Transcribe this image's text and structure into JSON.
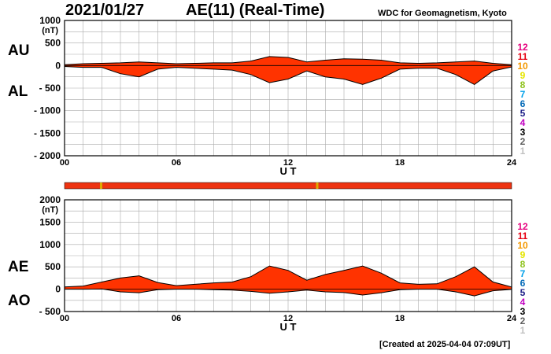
{
  "header": {
    "date": "2021/01/27",
    "title": "AE(11) (Real-Time)",
    "institution": "WDC for Geomagnetism, Kyoto",
    "created": "[Created at 2025-04-04 07:09UT]"
  },
  "stations": {
    "labels": [
      "12",
      "11",
      "10",
      "9",
      "8",
      "7",
      "6",
      "5",
      "4",
      "3",
      "2",
      "1"
    ],
    "colors": [
      "#e6007e",
      "#e60012",
      "#f39800",
      "#e5e500",
      "#8fc31f",
      "#00a0e9",
      "#0068b7",
      "#1d2088",
      "#c000c0",
      "#000000",
      "#606060",
      "#c0c0c0"
    ]
  },
  "colors": {
    "fill": "#ff3300",
    "line": "#000000",
    "grid": "#aaaaaa",
    "bar": "#ee3311",
    "bar_mark": "#ddaa00"
  },
  "chart_data": [
    {
      "type": "area",
      "name": "AU/AL",
      "ylabel": "(nT)",
      "side_labels": [
        "AU",
        "AL"
      ],
      "xlabel": "U T",
      "xlim": [
        0,
        24
      ],
      "ylim": [
        -2000,
        1000
      ],
      "x_ticks": [
        0,
        6,
        12,
        18,
        24
      ],
      "x_tick_labels": [
        "00",
        "06",
        "12",
        "18",
        "24"
      ],
      "y_ticks": [
        1000,
        500,
        0,
        -500,
        -1000,
        -1500,
        -2000
      ],
      "y_tick_labels": [
        "1000",
        "500",
        "0",
        "- 500",
        "- 1000",
        "- 1500",
        "- 2000"
      ],
      "grid": true,
      "x": [
        0,
        1,
        2,
        3,
        4,
        5,
        6,
        7,
        8,
        9,
        10,
        11,
        12,
        13,
        14,
        15,
        16,
        17,
        18,
        19,
        20,
        21,
        22,
        23,
        24
      ],
      "series": [
        {
          "name": "AU",
          "values": [
            20,
            40,
            50,
            60,
            80,
            60,
            40,
            50,
            60,
            60,
            100,
            200,
            180,
            80,
            120,
            150,
            140,
            120,
            60,
            50,
            60,
            80,
            100,
            50,
            20
          ]
        },
        {
          "name": "AL",
          "values": [
            -20,
            -40,
            -40,
            -180,
            -250,
            -80,
            -40,
            -60,
            -80,
            -100,
            -200,
            -380,
            -300,
            -120,
            -250,
            -300,
            -420,
            -280,
            -80,
            -60,
            -60,
            -200,
            -420,
            -120,
            -30
          ]
        }
      ]
    },
    {
      "type": "area",
      "name": "AE/AO",
      "ylabel": "(nT)",
      "side_labels": [
        "AE",
        "AO"
      ],
      "xlabel": "U T",
      "xlim": [
        0,
        24
      ],
      "ylim": [
        -500,
        2000
      ],
      "x_ticks": [
        0,
        6,
        12,
        18,
        24
      ],
      "x_tick_labels": [
        "00",
        "06",
        "12",
        "18",
        "24"
      ],
      "y_ticks": [
        2000,
        1500,
        1000,
        500,
        0,
        -500
      ],
      "y_tick_labels": [
        "2000",
        "1500",
        "1000",
        "500",
        "0",
        "- 500"
      ],
      "grid": true,
      "x": [
        0,
        1,
        2,
        3,
        4,
        5,
        6,
        7,
        8,
        9,
        10,
        11,
        12,
        13,
        14,
        15,
        16,
        17,
        18,
        19,
        20,
        21,
        22,
        23,
        24
      ],
      "series": [
        {
          "name": "AE",
          "values": [
            50,
            70,
            160,
            250,
            300,
            150,
            80,
            110,
            140,
            160,
            280,
            520,
            420,
            200,
            330,
            420,
            520,
            360,
            140,
            110,
            120,
            280,
            500,
            160,
            50
          ]
        },
        {
          "name": "AO",
          "values": [
            0,
            0,
            5,
            -60,
            -80,
            -10,
            0,
            0,
            -10,
            -20,
            -50,
            -90,
            -60,
            -20,
            -60,
            -75,
            -130,
            -80,
            -10,
            0,
            0,
            -60,
            -150,
            -35,
            -5
          ]
        }
      ]
    }
  ]
}
